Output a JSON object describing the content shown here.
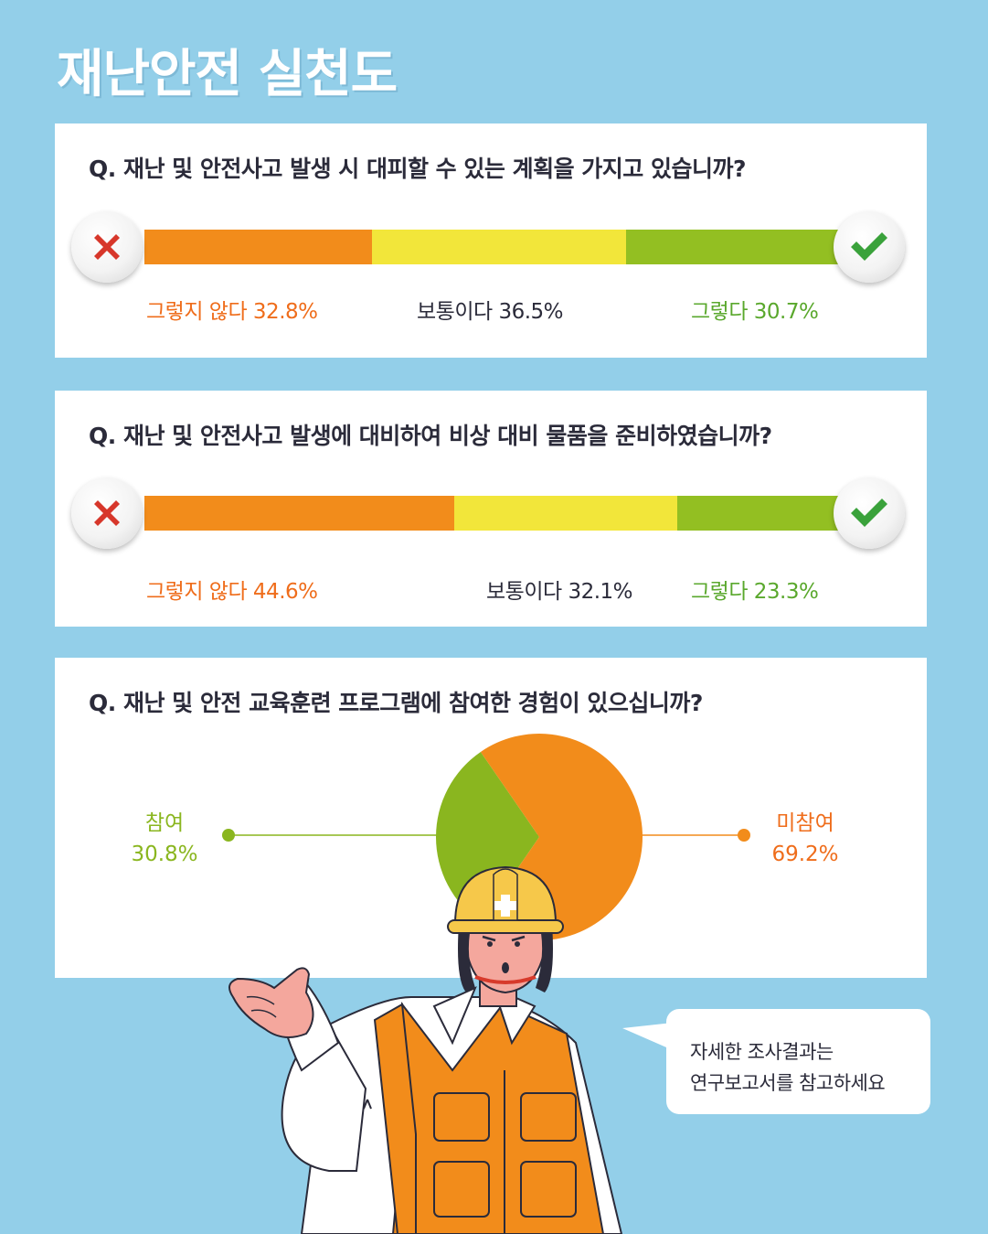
{
  "title": "재난안전 실천도",
  "colors": {
    "background": "#93cfe9",
    "not_so": "#f28c1b",
    "neutral": "#f2e63a",
    "so": "#93bf22",
    "pie_green": "#8ab61f",
    "pie_orange": "#f28c1b"
  },
  "questions": [
    {
      "question": "Q. 재난 및 안전사고 발생 시 대피할 수 있는 계획을 가지고 있습니까?",
      "labels": {
        "no": "그렇지 않다 32.8%",
        "mid": "보통이다 36.5%",
        "yes": "그렇다 30.7%"
      }
    },
    {
      "question": "Q. 재난 및 안전사고 발생에 대비하여 비상 대비 물품을 준비하였습니까?",
      "labels": {
        "no": "그렇지 않다 44.6%",
        "mid": "보통이다 32.1%",
        "yes": "그렇다 23.3%"
      }
    },
    {
      "question": "Q. 재난 및 안전 교육훈련 프로그램에 참여한 경험이 있으십니까?",
      "labels": {
        "participated": "참여",
        "participated_value": "30.8%",
        "not_participated": "미참여",
        "not_participated_value": "69.2%"
      }
    }
  ],
  "chart_data": [
    {
      "type": "bar",
      "stacked": true,
      "categories": [
        "그렇지 않다",
        "보통이다",
        "그렇다"
      ],
      "values": [
        32.8,
        36.5,
        30.7
      ]
    },
    {
      "type": "bar",
      "stacked": true,
      "categories": [
        "그렇지 않다",
        "보통이다",
        "그렇다"
      ],
      "values": [
        44.6,
        32.1,
        23.3
      ]
    },
    {
      "type": "pie",
      "categories": [
        "참여",
        "미참여"
      ],
      "values": [
        30.8,
        69.2
      ]
    }
  ],
  "speech_bubble": {
    "line1": "자세한 조사결과는",
    "line2": "연구보고서를 참고하세요"
  },
  "icons": [
    "x-icon",
    "check-icon",
    "safety-helmet-icon"
  ]
}
